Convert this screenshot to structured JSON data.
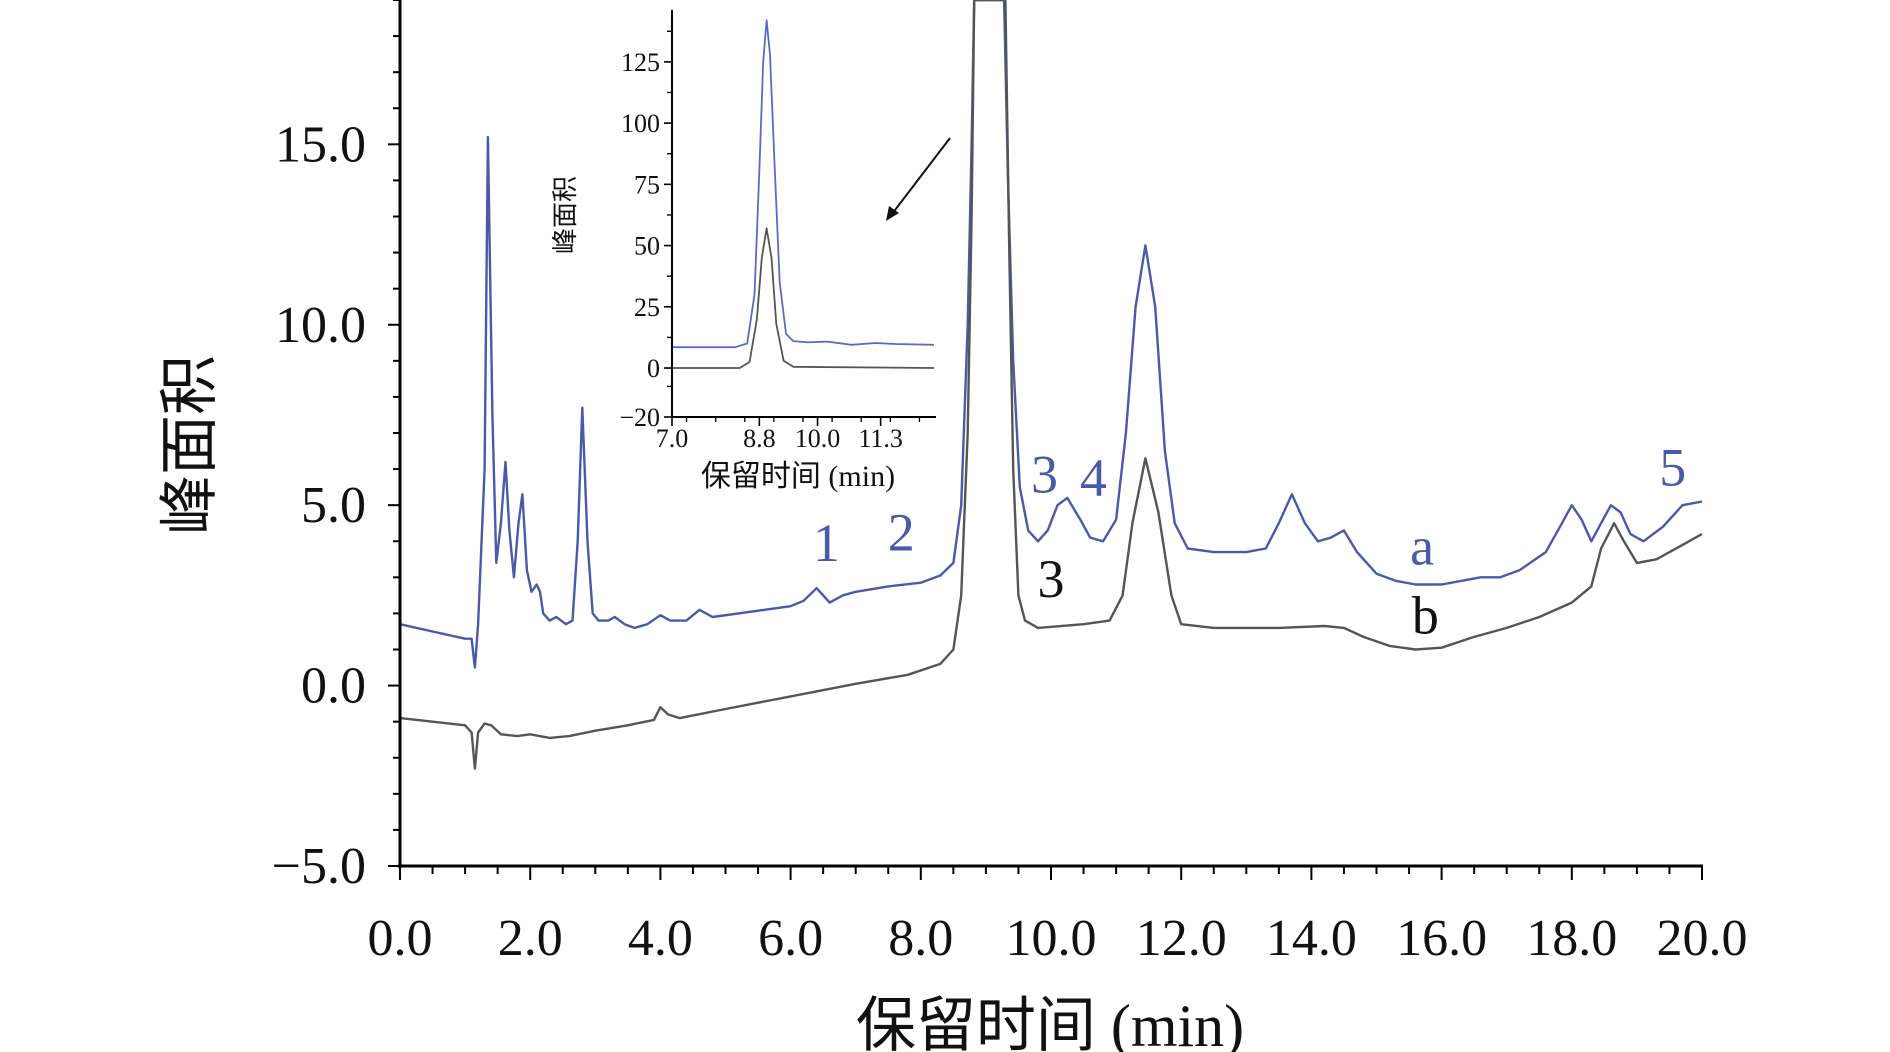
{
  "chart_data": [
    {
      "type": "line",
      "xlabel": "保留时间 (min)",
      "ylabel": "峰面积",
      "xlim": [
        0.0,
        20.0
      ],
      "ylim": [
        -5.0,
        19.0
      ],
      "xticks": [
        "0.0",
        "2.0",
        "4.0",
        "6.0",
        "8.0",
        "10.0",
        "12.0",
        "14.0",
        "16.0",
        "18.0",
        "20.0"
      ],
      "yticks": [
        "−5.0",
        "0.0",
        "5.0",
        "10.0",
        "15.0"
      ],
      "series": [
        {
          "name": "a",
          "color": "#4a5aa8",
          "points": [
            [
              0.0,
              1.7
            ],
            [
              0.5,
              1.5
            ],
            [
              1.0,
              1.3
            ],
            [
              1.1,
              1.3
            ],
            [
              1.15,
              0.5
            ],
            [
              1.2,
              1.7
            ],
            [
              1.3,
              6.0
            ],
            [
              1.35,
              15.2
            ],
            [
              1.42,
              7.5
            ],
            [
              1.48,
              3.4
            ],
            [
              1.55,
              4.5
            ],
            [
              1.62,
              6.2
            ],
            [
              1.68,
              4.3
            ],
            [
              1.75,
              3.0
            ],
            [
              1.82,
              4.5
            ],
            [
              1.88,
              5.3
            ],
            [
              1.95,
              3.2
            ],
            [
              2.02,
              2.6
            ],
            [
              2.1,
              2.8
            ],
            [
              2.15,
              2.6
            ],
            [
              2.2,
              2.0
            ],
            [
              2.3,
              1.8
            ],
            [
              2.4,
              1.9
            ],
            [
              2.55,
              1.7
            ],
            [
              2.65,
              1.8
            ],
            [
              2.73,
              4.0
            ],
            [
              2.8,
              7.7
            ],
            [
              2.88,
              4.0
            ],
            [
              2.96,
              2.0
            ],
            [
              3.05,
              1.8
            ],
            [
              3.2,
              1.8
            ],
            [
              3.3,
              1.9
            ],
            [
              3.45,
              1.7
            ],
            [
              3.6,
              1.6
            ],
            [
              3.8,
              1.7
            ],
            [
              4.0,
              1.95
            ],
            [
              4.15,
              1.8
            ],
            [
              4.4,
              1.8
            ],
            [
              4.6,
              2.1
            ],
            [
              4.8,
              1.9
            ],
            [
              5.2,
              2.0
            ],
            [
              5.6,
              2.1
            ],
            [
              6.0,
              2.2
            ],
            [
              6.2,
              2.35
            ],
            [
              6.4,
              2.7
            ],
            [
              6.6,
              2.3
            ],
            [
              6.8,
              2.5
            ],
            [
              7.0,
              2.6
            ],
            [
              7.5,
              2.75
            ],
            [
              8.0,
              2.85
            ],
            [
              8.3,
              3.05
            ],
            [
              8.5,
              3.4
            ],
            [
              8.62,
              5.0
            ],
            [
              8.72,
              10.0
            ],
            [
              8.78,
              15.0
            ],
            [
              8.82,
              19.0
            ],
            [
              9.28,
              19.0
            ],
            [
              9.34,
              14.0
            ],
            [
              9.42,
              9.0
            ],
            [
              9.52,
              5.5
            ],
            [
              9.65,
              4.3
            ],
            [
              9.8,
              4.0
            ],
            [
              9.95,
              4.3
            ],
            [
              10.1,
              5.0
            ],
            [
              10.25,
              5.2
            ],
            [
              10.45,
              4.6
            ],
            [
              10.6,
              4.1
            ],
            [
              10.8,
              4.0
            ],
            [
              11.0,
              4.6
            ],
            [
              11.15,
              7.0
            ],
            [
              11.3,
              10.5
            ],
            [
              11.45,
              12.2
            ],
            [
              11.6,
              10.5
            ],
            [
              11.75,
              6.5
            ],
            [
              11.9,
              4.5
            ],
            [
              12.1,
              3.8
            ],
            [
              12.5,
              3.7
            ],
            [
              13.0,
              3.7
            ],
            [
              13.3,
              3.8
            ],
            [
              13.5,
              4.5
            ],
            [
              13.7,
              5.3
            ],
            [
              13.9,
              4.5
            ],
            [
              14.1,
              4.0
            ],
            [
              14.3,
              4.1
            ],
            [
              14.5,
              4.3
            ],
            [
              14.7,
              3.7
            ],
            [
              15.0,
              3.1
            ],
            [
              15.3,
              2.9
            ],
            [
              15.6,
              2.8
            ],
            [
              16.0,
              2.8
            ],
            [
              16.3,
              2.9
            ],
            [
              16.6,
              3.0
            ],
            [
              16.9,
              3.0
            ],
            [
              17.2,
              3.2
            ],
            [
              17.6,
              3.7
            ],
            [
              17.85,
              4.5
            ],
            [
              18.0,
              5.0
            ],
            [
              18.15,
              4.6
            ],
            [
              18.3,
              4.0
            ],
            [
              18.45,
              4.5
            ],
            [
              18.6,
              5.0
            ],
            [
              18.75,
              4.8
            ],
            [
              18.9,
              4.2
            ],
            [
              19.1,
              4.0
            ],
            [
              19.4,
              4.4
            ],
            [
              19.7,
              5.0
            ],
            [
              20.0,
              5.1
            ]
          ]
        },
        {
          "name": "b",
          "color": "#555555",
          "points": [
            [
              0.0,
              -0.9
            ],
            [
              0.5,
              -1.0
            ],
            [
              1.0,
              -1.1
            ],
            [
              1.1,
              -1.3
            ],
            [
              1.15,
              -2.3
            ],
            [
              1.2,
              -1.3
            ],
            [
              1.3,
              -1.05
            ],
            [
              1.4,
              -1.1
            ],
            [
              1.55,
              -1.35
            ],
            [
              1.8,
              -1.4
            ],
            [
              2.0,
              -1.35
            ],
            [
              2.3,
              -1.45
            ],
            [
              2.6,
              -1.4
            ],
            [
              3.0,
              -1.25
            ],
            [
              3.5,
              -1.1
            ],
            [
              3.9,
              -0.95
            ],
            [
              4.0,
              -0.6
            ],
            [
              4.12,
              -0.8
            ],
            [
              4.3,
              -0.9
            ],
            [
              5.0,
              -0.65
            ],
            [
              6.0,
              -0.3
            ],
            [
              7.0,
              0.05
            ],
            [
              7.8,
              0.3
            ],
            [
              8.3,
              0.6
            ],
            [
              8.5,
              1.0
            ],
            [
              8.62,
              2.5
            ],
            [
              8.72,
              7.0
            ],
            [
              8.78,
              13.0
            ],
            [
              8.82,
              19.0
            ],
            [
              9.3,
              19.0
            ],
            [
              9.36,
              12.0
            ],
            [
              9.42,
              6.0
            ],
            [
              9.5,
              2.5
            ],
            [
              9.6,
              1.8
            ],
            [
              9.8,
              1.6
            ],
            [
              10.5,
              1.7
            ],
            [
              10.9,
              1.8
            ],
            [
              11.1,
              2.5
            ],
            [
              11.25,
              4.5
            ],
            [
              11.45,
              6.3
            ],
            [
              11.65,
              4.8
            ],
            [
              11.85,
              2.5
            ],
            [
              12.0,
              1.7
            ],
            [
              12.5,
              1.6
            ],
            [
              13.5,
              1.6
            ],
            [
              14.2,
              1.65
            ],
            [
              14.5,
              1.6
            ],
            [
              14.8,
              1.35
            ],
            [
              15.2,
              1.1
            ],
            [
              15.6,
              1.0
            ],
            [
              16.0,
              1.05
            ],
            [
              16.5,
              1.35
            ],
            [
              17.0,
              1.6
            ],
            [
              17.5,
              1.9
            ],
            [
              18.0,
              2.3
            ],
            [
              18.3,
              2.75
            ],
            [
              18.45,
              3.8
            ],
            [
              18.65,
              4.5
            ],
            [
              18.8,
              4.0
            ],
            [
              19.0,
              3.4
            ],
            [
              19.3,
              3.5
            ],
            [
              19.7,
              3.9
            ],
            [
              20.0,
              4.2
            ]
          ]
        }
      ],
      "annotations": [
        {
          "text": "1",
          "x": 6.55,
          "y": 3.45,
          "color": "#4a5aa8"
        },
        {
          "text": "2",
          "x": 7.7,
          "y": 3.75,
          "color": "#4a5aa8"
        },
        {
          "text": "3",
          "x": 9.9,
          "y": 5.35,
          "color": "#4a5aa8"
        },
        {
          "text": "4",
          "x": 10.65,
          "y": 5.25,
          "color": "#4a5aa8"
        },
        {
          "text": "5",
          "x": 19.55,
          "y": 5.55,
          "color": "#4a5aa8"
        },
        {
          "text": "a",
          "x": 15.7,
          "y": 3.35,
          "color": "#4a5aa8"
        },
        {
          "text": "3",
          "x": 10.0,
          "y": 2.45,
          "color": "#111111"
        },
        {
          "text": "b",
          "x": 15.75,
          "y": 1.45,
          "color": "#111111"
        }
      ]
    },
    {
      "type": "line",
      "xlabel": "保留时间 (min)",
      "ylabel": "峰面积",
      "xlim": [
        7.0,
        12.4
      ],
      "ylim": [
        -20,
        147
      ],
      "xticks": [
        "7.0",
        "8.8",
        "10.0",
        "11.3"
      ],
      "xtick_values": [
        7.0,
        8.8,
        10.0,
        11.3
      ],
      "yticks": [
        "−20",
        "0",
        "25",
        "50",
        "75",
        "100",
        "125"
      ],
      "series": [
        {
          "name": "a",
          "color": "#5b6cc0",
          "points": [
            [
              7.0,
              8.5
            ],
            [
              8.3,
              8.5
            ],
            [
              8.55,
              10.0
            ],
            [
              8.7,
              30.0
            ],
            [
              8.8,
              80.0
            ],
            [
              8.88,
              125.0
            ],
            [
              8.95,
              142.0
            ],
            [
              9.02,
              128.0
            ],
            [
              9.12,
              80.0
            ],
            [
              9.22,
              35.0
            ],
            [
              9.35,
              14.0
            ],
            [
              9.5,
              11.0
            ],
            [
              9.8,
              10.5
            ],
            [
              10.2,
              10.8
            ],
            [
              10.7,
              9.5
            ],
            [
              11.2,
              10.2
            ],
            [
              11.6,
              9.8
            ],
            [
              12.4,
              9.5
            ]
          ]
        },
        {
          "name": "b",
          "color": "#555555",
          "points": [
            [
              7.0,
              0.0
            ],
            [
              8.4,
              0.0
            ],
            [
              8.6,
              2.5
            ],
            [
              8.75,
              20.0
            ],
            [
              8.85,
              45.0
            ],
            [
              8.95,
              57.0
            ],
            [
              9.05,
              45.0
            ],
            [
              9.15,
              18.0
            ],
            [
              9.3,
              3.0
            ],
            [
              9.5,
              0.5
            ],
            [
              12.4,
              0.0
            ]
          ]
        }
      ]
    }
  ]
}
